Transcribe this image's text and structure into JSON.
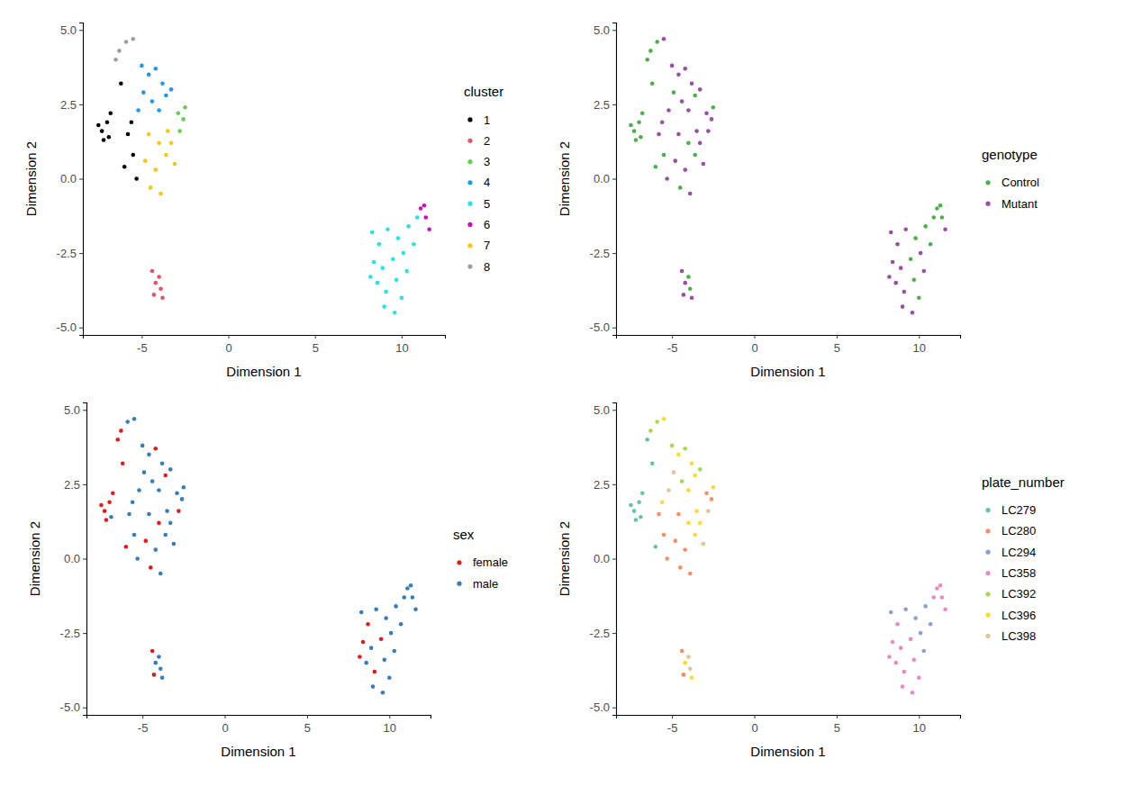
{
  "chart_data": [
    {
      "type": "scatter",
      "x_label": "Dimension 1",
      "y_label": "Dimension 2",
      "legend_title": "cluster",
      "legend": "right",
      "xlim": [
        -8.4,
        12.5
      ],
      "ylim": [
        -5.25,
        5.25
      ],
      "xticks": [
        -5,
        0,
        5,
        10
      ],
      "yticks": [
        {
          "value": -5,
          "label": "-5.0"
        },
        {
          "value": -2.5,
          "label": "-2.5"
        },
        {
          "value": 0,
          "label": "0.0"
        },
        {
          "value": 2.5,
          "label": "2.5"
        },
        {
          "value": 5,
          "label": "5.0"
        }
      ],
      "series": [
        {
          "name": "1",
          "color": "#000000",
          "x": [
            -7.3,
            -7.0,
            -7.2,
            -6.8,
            -7.5,
            -6.9,
            -6.2,
            -5.8,
            -5.5,
            -6.0,
            -5.3,
            -5.6
          ],
          "values": [
            1.6,
            1.9,
            1.3,
            2.2,
            1.8,
            1.4,
            3.2,
            1.5,
            0.8,
            0.4,
            0.0,
            1.9
          ]
        },
        {
          "name": "2",
          "color": "#DF536B",
          "x": [
            -4.4,
            -4.2,
            -3.9,
            -4.3,
            -3.8,
            -4.0
          ],
          "values": [
            -3.1,
            -3.5,
            -3.7,
            -3.9,
            -4.0,
            -3.3
          ]
        },
        {
          "name": "3",
          "color": "#61D04F",
          "x": [
            -2.9,
            -2.6,
            -2.8,
            -2.5
          ],
          "values": [
            2.2,
            2.0,
            1.6,
            2.4
          ]
        },
        {
          "name": "4",
          "color": "#2297E6",
          "x": [
            -5.0,
            -4.6,
            -4.2,
            -3.8,
            -4.9,
            -4.4,
            -3.6,
            -5.2,
            -4.0,
            -3.3
          ],
          "values": [
            3.8,
            3.5,
            3.7,
            3.2,
            2.9,
            2.6,
            2.8,
            2.3,
            2.3,
            3.0
          ]
        },
        {
          "name": "5",
          "color": "#28E2E5",
          "x": [
            8.3,
            8.7,
            9.2,
            9.8,
            10.4,
            8.4,
            8.9,
            9.5,
            10.1,
            10.7,
            8.6,
            9.1,
            9.7,
            10.3,
            9.0,
            9.6,
            10.0,
            8.2,
            10.9
          ],
          "values": [
            -1.8,
            -2.2,
            -1.7,
            -2.0,
            -1.6,
            -2.8,
            -3.0,
            -2.7,
            -2.5,
            -2.2,
            -3.5,
            -3.8,
            -3.4,
            -3.1,
            -4.3,
            -4.5,
            -4.0,
            -3.3,
            -1.3
          ]
        },
        {
          "name": "6",
          "color": "#CD0BBC",
          "x": [
            11.1,
            11.4,
            11.6,
            11.3
          ],
          "values": [
            -1.0,
            -1.3,
            -1.7,
            -0.9
          ]
        },
        {
          "name": "7",
          "color": "#F5C710",
          "x": [
            -4.6,
            -4.0,
            -3.5,
            -4.8,
            -4.2,
            -3.6,
            -3.1,
            -4.5,
            -3.9,
            -3.3
          ],
          "values": [
            1.5,
            1.2,
            1.6,
            0.6,
            0.3,
            0.8,
            0.5,
            -0.3,
            -0.5,
            1.2
          ]
        },
        {
          "name": "8",
          "color": "#9E9E9E",
          "x": [
            -6.3,
            -5.9,
            -5.5,
            -6.5
          ],
          "values": [
            4.3,
            4.6,
            4.7,
            4.0
          ]
        }
      ]
    },
    {
      "type": "scatter",
      "x_label": "Dimension 1",
      "y_label": "Dimension 2",
      "legend_title": "genotype",
      "legend": "right",
      "xlim": [
        -8.4,
        12.5
      ],
      "ylim": [
        -5.25,
        5.25
      ],
      "xticks": [
        -5,
        0,
        5,
        10
      ],
      "yticks": [
        {
          "value": -5,
          "label": "-5.0"
        },
        {
          "value": -2.5,
          "label": "-2.5"
        },
        {
          "value": 0,
          "label": "0.0"
        },
        {
          "value": 2.5,
          "label": "2.5"
        },
        {
          "value": 5,
          "label": "5.0"
        }
      ],
      "series": [
        {
          "name": "Control",
          "color": "#4DAF4A",
          "x": [
            -7.3,
            -7.0,
            -7.2,
            -6.8,
            -7.5,
            -6.9,
            -6.2,
            -5.5,
            -6.0,
            -6.3,
            -5.9,
            -6.5,
            -4.9,
            -3.6,
            -4.0,
            -3.6,
            -4.5,
            -2.5,
            -3.9,
            -4.0,
            9.8,
            10.4,
            9.5,
            10.7,
            9.7,
            10.0,
            10.9,
            11.1,
            11.4,
            11.3
          ],
          "values": [
            1.6,
            1.9,
            1.3,
            2.2,
            1.8,
            1.4,
            3.2,
            0.8,
            0.4,
            4.3,
            4.6,
            4.0,
            2.9,
            2.8,
            1.2,
            0.8,
            -0.3,
            2.4,
            -3.7,
            -3.3,
            -2.0,
            -1.6,
            -2.7,
            -2.2,
            -3.4,
            -4.0,
            -1.3,
            -1.0,
            -1.3,
            -0.9
          ]
        },
        {
          "name": "Mutant",
          "color": "#984EA3",
          "x": [
            -5.8,
            -5.3,
            -5.6,
            -5.5,
            -5.0,
            -4.6,
            -4.2,
            -3.8,
            -4.4,
            -5.2,
            -4.0,
            -3.3,
            -4.6,
            -3.5,
            -4.8,
            -4.2,
            -3.1,
            -3.9,
            -3.3,
            -2.9,
            -2.6,
            -2.8,
            -4.4,
            -4.2,
            -4.3,
            -3.8,
            8.3,
            8.7,
            9.2,
            8.4,
            8.9,
            10.1,
            8.6,
            9.1,
            10.3,
            9.0,
            9.6,
            8.2,
            11.6
          ],
          "values": [
            1.5,
            0.0,
            1.9,
            4.7,
            3.8,
            3.5,
            3.7,
            3.2,
            2.6,
            2.3,
            2.3,
            3.0,
            1.5,
            1.6,
            0.6,
            0.3,
            0.5,
            -0.5,
            1.2,
            2.2,
            2.0,
            1.6,
            -3.1,
            -3.5,
            -3.9,
            -4.0,
            -1.8,
            -2.2,
            -1.7,
            -2.8,
            -3.0,
            -2.5,
            -3.5,
            -3.8,
            -3.1,
            -4.3,
            -4.5,
            -3.3,
            -1.7
          ]
        }
      ]
    },
    {
      "type": "scatter",
      "x_label": "Dimension 1",
      "y_label": "Dimension 2",
      "legend_title": "sex",
      "legend": "right",
      "xlim": [
        -8.4,
        12.5
      ],
      "ylim": [
        -5.25,
        5.25
      ],
      "xticks": [
        -5,
        0,
        5,
        10
      ],
      "yticks": [
        {
          "value": -5,
          "label": "-5.0"
        },
        {
          "value": -2.5,
          "label": "-2.5"
        },
        {
          "value": 0,
          "label": "0.0"
        },
        {
          "value": 2.5,
          "label": "2.5"
        },
        {
          "value": 5,
          "label": "5.0"
        }
      ],
      "series": [
        {
          "name": "female",
          "color": "#E41A1C",
          "x": [
            -7.3,
            -7.0,
            -7.2,
            -6.8,
            -7.5,
            -6.2,
            -6.0,
            -6.3,
            -6.5,
            -4.2,
            -3.6,
            -4.0,
            -4.8,
            -4.5,
            -2.8,
            -4.4,
            -4.3,
            8.7,
            8.4,
            9.5,
            9.1,
            8.2
          ],
          "values": [
            1.6,
            1.9,
            1.3,
            2.2,
            1.8,
            3.2,
            0.4,
            4.3,
            4.0,
            3.7,
            2.8,
            1.2,
            0.6,
            -0.3,
            1.6,
            -3.1,
            -3.9,
            -2.2,
            -2.8,
            -2.7,
            -3.8,
            -3.3
          ]
        },
        {
          "name": "male",
          "color": "#377EB8",
          "x": [
            -6.9,
            -5.8,
            -5.5,
            -5.3,
            -5.6,
            -5.9,
            -5.5,
            -5.0,
            -4.6,
            -3.8,
            -4.9,
            -4.4,
            -5.2,
            -4.0,
            -3.3,
            -4.6,
            -3.5,
            -4.2,
            -3.6,
            -3.1,
            -3.9,
            -3.3,
            -2.9,
            -2.6,
            -2.5,
            -4.2,
            -3.9,
            -3.8,
            -4.0,
            8.3,
            9.2,
            9.8,
            10.4,
            8.9,
            10.1,
            10.7,
            8.6,
            9.7,
            10.3,
            9.0,
            9.6,
            10.0,
            10.9,
            11.1,
            11.4,
            11.6,
            11.3
          ],
          "values": [
            1.4,
            1.5,
            0.8,
            0.0,
            1.9,
            4.6,
            4.7,
            3.8,
            3.5,
            3.2,
            2.9,
            2.6,
            2.3,
            2.3,
            3.0,
            1.5,
            1.6,
            0.3,
            0.8,
            0.5,
            -0.5,
            1.2,
            2.2,
            2.0,
            2.4,
            -3.5,
            -3.7,
            -4.0,
            -3.3,
            -1.8,
            -1.7,
            -2.0,
            -1.6,
            -3.0,
            -2.5,
            -2.2,
            -3.5,
            -3.4,
            -3.1,
            -4.3,
            -4.5,
            -4.0,
            -1.3,
            -1.0,
            -1.3,
            -1.7,
            -0.9
          ]
        }
      ]
    },
    {
      "type": "scatter",
      "x_label": "Dimension 1",
      "y_label": "Dimension 2",
      "legend_title": "plate_number",
      "legend": "right",
      "xlim": [
        -8.4,
        12.5
      ],
      "ylim": [
        -5.25,
        5.25
      ],
      "xticks": [
        -5,
        0,
        5,
        10
      ],
      "yticks": [
        {
          "value": -5,
          "label": "-5.0"
        },
        {
          "value": -2.5,
          "label": "-2.5"
        },
        {
          "value": 0,
          "label": "0.0"
        },
        {
          "value": 2.5,
          "label": "2.5"
        },
        {
          "value": 5,
          "label": "5.0"
        }
      ],
      "series": [
        {
          "name": "LC279",
          "color": "#66C2A5",
          "x": [
            -7.3,
            -7.0,
            -7.2,
            -6.8,
            -7.5,
            -6.9,
            -6.2,
            -6.0,
            -6.5
          ],
          "values": [
            1.6,
            1.9,
            1.3,
            2.2,
            1.8,
            1.4,
            3.2,
            0.4,
            4.0
          ]
        },
        {
          "name": "LC280",
          "color": "#FC8D62",
          "x": [
            -5.8,
            -5.5,
            -5.3,
            -4.6,
            -4.8,
            -4.2,
            -4.5,
            -3.9,
            -2.9,
            -2.6,
            -4.4,
            -4.3
          ],
          "values": [
            1.5,
            0.8,
            0.0,
            1.5,
            0.6,
            0.3,
            -0.3,
            -0.5,
            2.2,
            2.0,
            -3.1,
            -3.9
          ]
        },
        {
          "name": "LC294",
          "color": "#8DA0CB",
          "x": [
            8.3,
            9.2,
            9.8,
            10.4,
            10.1,
            10.7,
            10.3
          ],
          "values": [
            -1.8,
            -1.7,
            -2.0,
            -1.6,
            -2.5,
            -2.2,
            -3.1
          ]
        },
        {
          "name": "LC358",
          "color": "#E78AC3",
          "x": [
            8.7,
            8.4,
            8.9,
            9.5,
            8.6,
            9.1,
            9.7,
            9.0,
            9.6,
            10.0,
            8.2,
            10.9,
            11.1,
            11.4,
            11.6,
            11.3
          ],
          "values": [
            -2.2,
            -2.8,
            -3.0,
            -2.7,
            -3.5,
            -3.8,
            -3.4,
            -4.3,
            -4.5,
            -4.0,
            -3.3,
            -1.3,
            -1.0,
            -1.3,
            -1.7,
            -0.9
          ]
        },
        {
          "name": "LC392",
          "color": "#A6D854",
          "x": [
            -6.3,
            -5.9,
            -5.0,
            -4.2,
            -4.4,
            -3.3
          ],
          "values": [
            4.3,
            4.6,
            3.8,
            3.7,
            2.6,
            3.0
          ]
        },
        {
          "name": "LC396",
          "color": "#FFD92F",
          "x": [
            -5.6,
            -5.5,
            -4.6,
            -3.8,
            -3.6,
            -4.0,
            -4.0,
            -3.5,
            -3.6,
            -3.3,
            -2.5,
            -4.2,
            -3.8
          ],
          "values": [
            1.9,
            4.7,
            3.5,
            3.2,
            2.8,
            2.3,
            1.2,
            1.6,
            0.8,
            1.2,
            2.4,
            -3.5,
            -4.0
          ]
        },
        {
          "name": "LC398",
          "color": "#E5C494",
          "x": [
            -4.9,
            -5.2,
            -3.1,
            -2.8,
            -3.9,
            -4.0
          ],
          "values": [
            2.9,
            2.3,
            0.5,
            1.6,
            -3.7,
            -3.3
          ]
        }
      ]
    }
  ]
}
